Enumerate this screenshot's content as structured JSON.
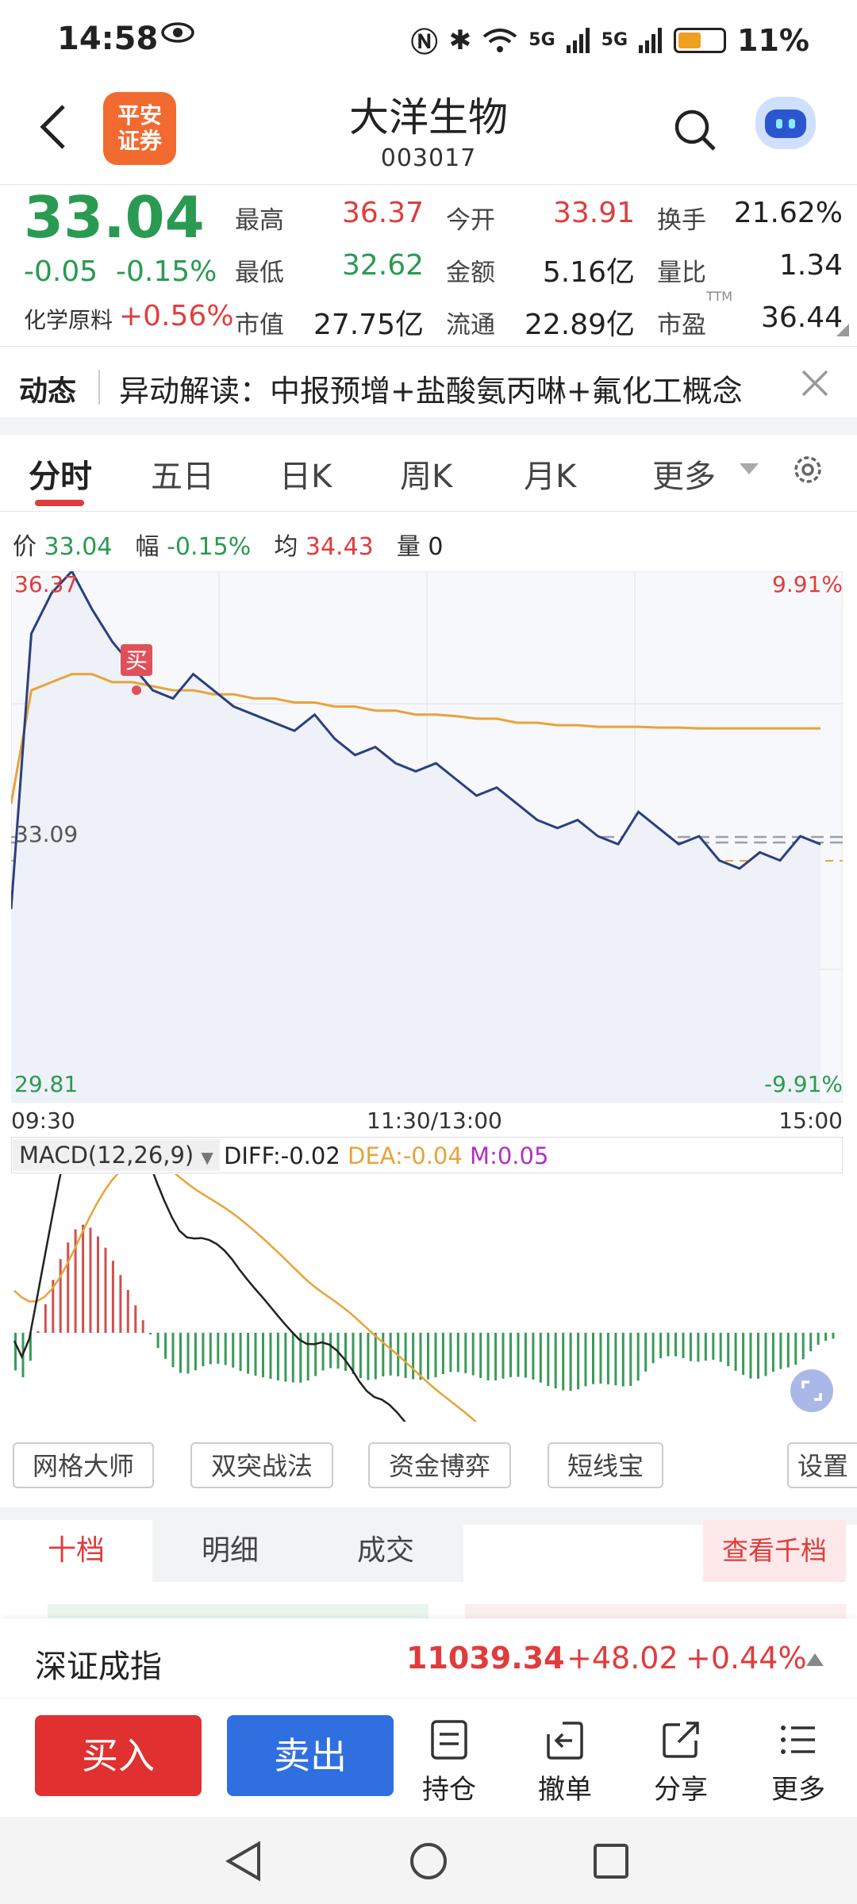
{
  "status_bar": {
    "time": "14:58",
    "battery": "11%",
    "signal_left": "5G",
    "signal_right": "5G"
  },
  "header": {
    "stock_name": "大洋生物",
    "stock_code": "003017",
    "logo_text_1": "平安",
    "logo_text_2": "证券"
  },
  "quote": {
    "price": "33.04",
    "change": "-0.05",
    "change_pct": "-0.15%",
    "sector_name": "化学原料",
    "sector_change": "+0.56%",
    "fields": {
      "high_label": "最高",
      "high": "36.37",
      "open_label": "今开",
      "open": "33.91",
      "turnover_label": "换手",
      "turnover": "21.62%",
      "low_label": "最低",
      "low": "32.62",
      "amount_label": "金额",
      "amount": "5.16亿",
      "vol_ratio_label": "量比",
      "vol_ratio": "1.34",
      "mktcap_label": "市值",
      "mktcap": "27.75亿",
      "float_label": "流通",
      "float": "22.89亿",
      "pe_label": "市盈",
      "pe_sup": "TTM",
      "pe": "36.44"
    }
  },
  "news": {
    "tag": "动态",
    "text": "异动解读：中报预增+盐酸氨丙啉+氟化工概念"
  },
  "tabs": [
    "分时",
    "五日",
    "日K",
    "周K",
    "月K",
    "更多"
  ],
  "chart_info": {
    "price_label": "价",
    "price": "33.04",
    "range_label": "幅",
    "range": "-0.15%",
    "avg_label": "均",
    "avg": "34.43",
    "vol_label": "量",
    "vol": "0"
  },
  "chart_axes": {
    "top_price": "36.37",
    "top_pct": "9.91%",
    "mid_price": "33.09",
    "bottom_price": "29.81",
    "bottom_pct": "-9.91%",
    "t_start": "09:30",
    "t_mid": "11:30/13:00",
    "t_end": "15:00",
    "buy_marker": "买"
  },
  "macd": {
    "title": "MACD(12,26,9)",
    "diff": "DIFF:-0.02",
    "dea": "DEA:-0.04",
    "m": "M:0.05"
  },
  "chart_data": {
    "type": "line",
    "ylim": [
      29.81,
      36.37
    ],
    "prev_close": 33.09,
    "series": [
      {
        "values": [
          32.2,
          35.6,
          36.1,
          36.37,
          35.9,
          35.5,
          35.2,
          34.9,
          34.8,
          35.1,
          34.9,
          34.7,
          34.6,
          34.5,
          34.4,
          34.6,
          34.3,
          34.1,
          34.2,
          34.0,
          33.9,
          34.0,
          33.8,
          33.6,
          33.7,
          33.5,
          33.3,
          33.2,
          33.3,
          33.1,
          33.0,
          33.4,
          33.2,
          33.0,
          33.1,
          32.8,
          32.7,
          32.9,
          32.8,
          33.1,
          33.0
        ]
      },
      {
        "values": [
          33.5,
          34.9,
          35.0,
          35.1,
          35.1,
          35.0,
          35.0,
          34.95,
          34.9,
          34.9,
          34.85,
          34.85,
          34.8,
          34.8,
          34.75,
          34.75,
          34.7,
          34.7,
          34.65,
          34.65,
          34.6,
          34.6,
          34.58,
          34.55,
          34.55,
          34.5,
          34.5,
          34.47,
          34.47,
          34.45,
          34.45,
          34.45,
          34.44,
          34.44,
          34.43,
          34.43,
          34.43,
          34.43,
          34.43,
          34.43,
          34.43
        ]
      }
    ]
  },
  "tools": [
    "网格大师",
    "双突战法",
    "资金博弈",
    "短线宝",
    "设置"
  ],
  "depth_tabs": [
    "十档",
    "明细",
    "成交",
    "查看千档"
  ],
  "index": {
    "name": "深证成指",
    "value": "11039.34",
    "change": "+48.02",
    "change_pct": "+0.44%"
  },
  "bottom_bar": {
    "buy": "买入",
    "sell": "卖出",
    "holdings": "持仓",
    "cancel": "撤单",
    "share": "分享",
    "more": "更多"
  },
  "colors": {
    "up": "#e03c3c",
    "down": "#2a9a52",
    "price_line": "#2b3f7e",
    "avg_line": "#e8a33a",
    "buy_btn": "#e03030",
    "sell_btn": "#2f6fe0"
  }
}
